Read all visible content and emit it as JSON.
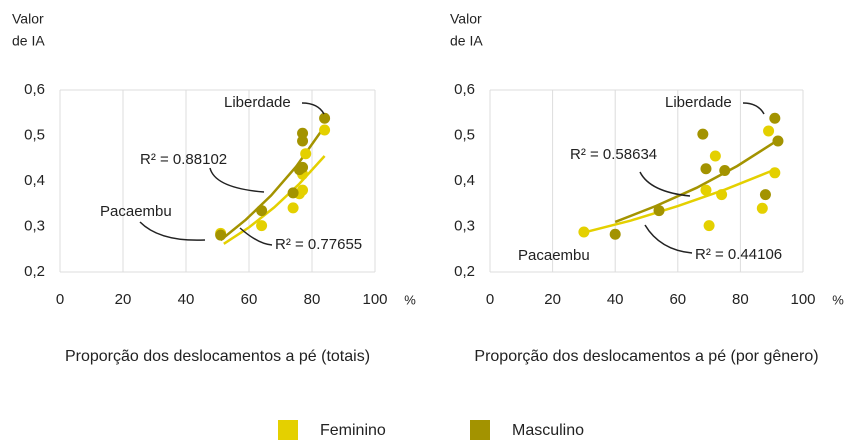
{
  "chart_data": [
    {
      "type": "scatter",
      "ylabel": [
        "Valor",
        "de IA"
      ],
      "xlabel": "Proporção dos deslocamentos a pé (totais)",
      "x_unit": "%",
      "xlim": [
        0,
        100
      ],
      "xticks": [
        0,
        20,
        40,
        60,
        80,
        100
      ],
      "ylim": [
        0.2,
        0.6
      ],
      "yticks": [
        {
          "value": 0.2,
          "label": "0,2"
        },
        {
          "value": 0.3,
          "label": "0,3"
        },
        {
          "value": 0.4,
          "label": "0,4"
        },
        {
          "value": 0.5,
          "label": "0,5"
        },
        {
          "value": 0.6,
          "label": "0,6"
        }
      ],
      "grid": true,
      "series": [
        {
          "name": "Feminino",
          "color": "#e4d000",
          "x": [
            51,
            64,
            74,
            76,
            77,
            77,
            78,
            84
          ],
          "values": [
            0.285,
            0.302,
            0.341,
            0.372,
            0.38,
            0.415,
            0.46,
            0.512
          ],
          "trend": {
            "x": [
              52,
              60,
              68,
              76,
              84
            ],
            "values": [
              0.262,
              0.298,
              0.342,
              0.394,
              0.455
            ]
          }
        },
        {
          "name": "Masculino",
          "color": "#a39300",
          "x": [
            51,
            64,
            74,
            76,
            77,
            77,
            77,
            84
          ],
          "values": [
            0.281,
            0.335,
            0.374,
            0.425,
            0.43,
            0.488,
            0.505,
            0.538
          ],
          "trend": {
            "x": [
              51,
              59,
              67,
              75,
              84
            ],
            "values": [
              0.27,
              0.315,
              0.368,
              0.432,
              0.52
            ]
          }
        }
      ],
      "annotations": [
        {
          "text": "Liberdade"
        },
        {
          "text": "R² = 0.88102"
        },
        {
          "text": "Pacaembu"
        },
        {
          "text": "R² = 0.77655"
        }
      ]
    },
    {
      "type": "scatter",
      "ylabel": [
        "Valor",
        "de IA"
      ],
      "xlabel": "Proporção dos deslocamentos a pé (por gênero)",
      "x_unit": "%",
      "xlim": [
        0,
        100
      ],
      "xticks": [
        0,
        20,
        40,
        60,
        80,
        100
      ],
      "ylim": [
        0.2,
        0.6
      ],
      "yticks": [
        {
          "value": 0.2,
          "label": "0,2"
        },
        {
          "value": 0.3,
          "label": "0,3"
        },
        {
          "value": 0.4,
          "label": "0,4"
        },
        {
          "value": 0.5,
          "label": "0,5"
        },
        {
          "value": 0.6,
          "label": "0,6"
        }
      ],
      "grid": true,
      "series": [
        {
          "name": "Feminino",
          "color": "#e4d000",
          "x": [
            30,
            69,
            70,
            72,
            74,
            87,
            89,
            91
          ],
          "values": [
            0.288,
            0.38,
            0.302,
            0.455,
            0.37,
            0.34,
            0.51,
            0.418
          ],
          "trend": {
            "x": [
              29,
              45,
              60,
              75,
              91
            ],
            "values": [
              0.285,
              0.313,
              0.345,
              0.381,
              0.425
            ]
          }
        },
        {
          "name": "Masculino",
          "color": "#a39300",
          "x": [
            40,
            54,
            68,
            69,
            75,
            88,
            91,
            92
          ],
          "values": [
            0.283,
            0.335,
            0.503,
            0.427,
            0.423,
            0.37,
            0.538,
            0.488
          ],
          "trend": {
            "x": [
              40,
              53,
              66,
              79,
              92
            ],
            "values": [
              0.31,
              0.345,
              0.385,
              0.433,
              0.49
            ]
          }
        }
      ],
      "annotations": [
        {
          "text": "Liberdade"
        },
        {
          "text": "R² = 0.58634"
        },
        {
          "text": "Pacaembu"
        },
        {
          "text": "R² = 0.44106"
        }
      ]
    }
  ]
}
